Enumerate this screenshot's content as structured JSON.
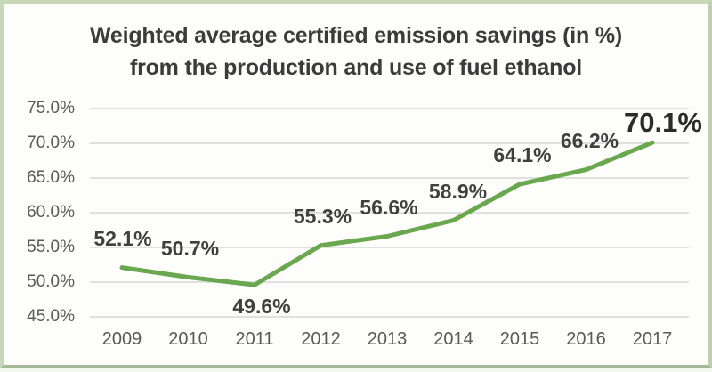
{
  "chart_data": {
    "type": "line",
    "title": "Weighted average certified emission savings (in %) from the production and use of fuel ethanol",
    "title_lines": [
      "Weighted average certified emission savings (in %)",
      "from the production and use of fuel ethanol"
    ],
    "categories": [
      "2009",
      "2010",
      "2011",
      "2012",
      "2013",
      "2014",
      "2015",
      "2016",
      "2017"
    ],
    "series": [
      {
        "name": "Weighted average certified emission savings (%)",
        "values": [
          52.1,
          50.7,
          49.6,
          55.3,
          56.6,
          58.9,
          64.1,
          66.2,
          70.1
        ]
      }
    ],
    "data_labels": [
      "52.1%",
      "50.7%",
      "49.6%",
      "55.3%",
      "56.6%",
      "58.9%",
      "64.1%",
      "66.2%",
      "70.1%"
    ],
    "label_positions": [
      "above",
      "above",
      "below",
      "above",
      "above",
      "above",
      "above",
      "above",
      "above-big"
    ],
    "y_ticks": [
      "75.0%",
      "70.0%",
      "65.0%",
      "60.0%",
      "55.0%",
      "50.0%",
      "45.0%"
    ],
    "ylim": [
      45,
      75
    ],
    "y_tick_step": 5,
    "xlabel": "",
    "ylabel": "",
    "grid": true,
    "legend": "none",
    "colors": {
      "line": "#6aa84f",
      "gridline": "#dcdcdc",
      "title": "#3b3b3b",
      "data_label": "#3f3f3f",
      "axis_label": "#595959",
      "frame_border": "#c6d8b8",
      "background": "#fdfdfb"
    }
  }
}
